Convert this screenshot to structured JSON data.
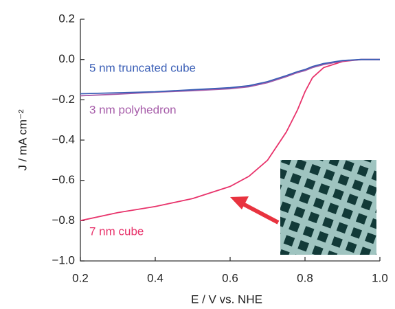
{
  "chart_data": {
    "type": "line",
    "x_label": "E / V vs. NHE",
    "y_label": "J / mA cm⁻²",
    "x": [
      0.2,
      0.3,
      0.4,
      0.5,
      0.6,
      0.65,
      0.7,
      0.75,
      0.78,
      0.8,
      0.82,
      0.85,
      0.9,
      0.95,
      1.0
    ],
    "series": [
      {
        "name": "5 nm truncated cube",
        "color": "#3b5fb6",
        "values": [
          -0.17,
          -0.165,
          -0.16,
          -0.15,
          -0.14,
          -0.13,
          -0.11,
          -0.08,
          -0.06,
          -0.05,
          -0.035,
          -0.02,
          -0.005,
          0,
          0
        ]
      },
      {
        "name": "3 nm polyhedron",
        "color": "#a55aa8",
        "values": [
          -0.18,
          -0.172,
          -0.162,
          -0.155,
          -0.145,
          -0.135,
          -0.115,
          -0.085,
          -0.065,
          -0.055,
          -0.04,
          -0.025,
          -0.008,
          0,
          0
        ]
      },
      {
        "name": "7 nm cube",
        "color": "#e8336b",
        "values": [
          -0.8,
          -0.76,
          -0.73,
          -0.69,
          -0.63,
          -0.58,
          -0.5,
          -0.36,
          -0.25,
          -0.16,
          -0.09,
          -0.04,
          -0.01,
          0,
          0
        ]
      }
    ],
    "xlim": [
      0.2,
      1.0
    ],
    "ylim": [
      -1.0,
      0.2
    ],
    "xticks": [
      0.2,
      0.4,
      0.6,
      0.8,
      {
        "value": 1,
        "label": "1.0"
      }
    ],
    "yticks": [
      0.2,
      {
        "value": 0,
        "label": "0.0"
      },
      {
        "value": -0.2,
        "label": "−0.2"
      },
      {
        "value": -0.4,
        "label": "−0.4"
      },
      {
        "value": -0.6,
        "label": "−0.6"
      },
      {
        "value": -0.8,
        "label": "−0.8"
      },
      {
        "value": -1,
        "label": "−1.0"
      }
    ]
  }
}
